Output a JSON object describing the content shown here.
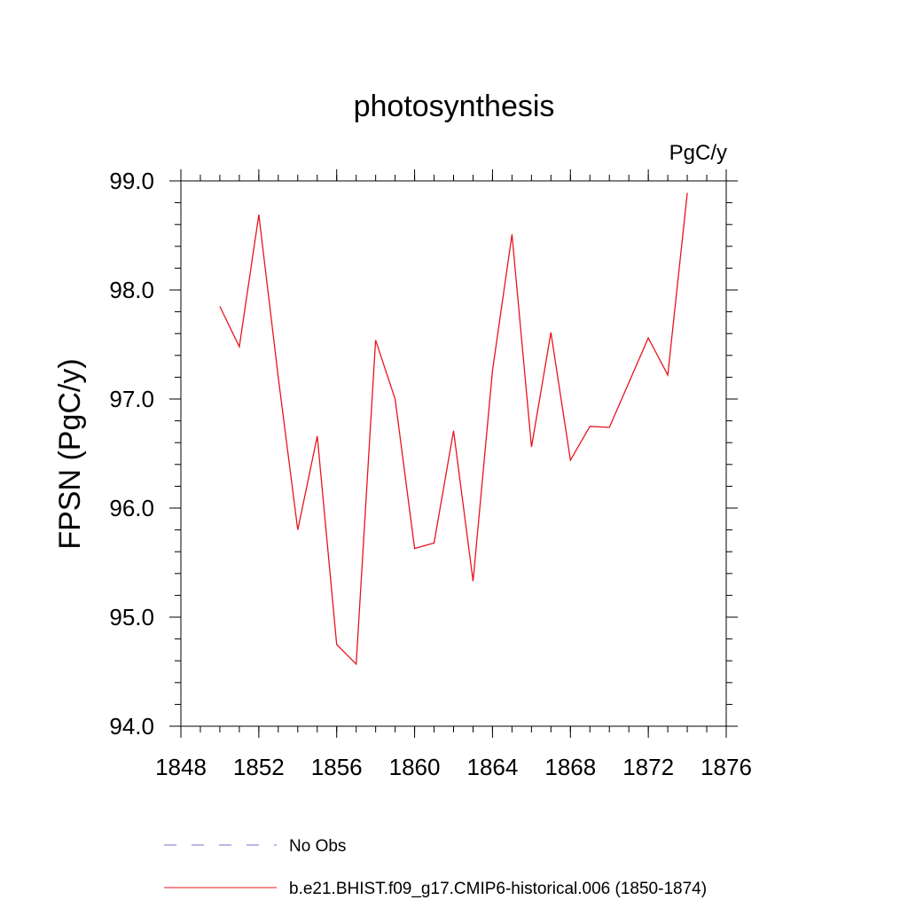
{
  "chart_data": {
    "type": "line",
    "title": "photosynthesis",
    "units_label": "PgC/y",
    "ylabel": "FPSN  (PgC/y)",
    "xlabel": "",
    "xlim": [
      1848,
      1876
    ],
    "ylim": [
      94.0,
      99.0
    ],
    "xticks": [
      "1848",
      "1852",
      "1856",
      "1860",
      "1864",
      "1868",
      "1872",
      "1876"
    ],
    "yticks": [
      "94.0",
      "95.0",
      "96.0",
      "97.0",
      "98.0",
      "99.0"
    ],
    "grid": false,
    "legend_position": "bottom",
    "series": [
      {
        "name": "No Obs",
        "color": "#7b68c8",
        "style": "dashed",
        "x": [],
        "y": []
      },
      {
        "name": "b.e21.BHIST.f09_g17.CMIP6-historical.006 (1850-1874)",
        "color": "#e8141e",
        "style": "solid",
        "x": [
          1850,
          1851,
          1852,
          1853,
          1854,
          1855,
          1856,
          1857,
          1858,
          1859,
          1860,
          1861,
          1862,
          1863,
          1864,
          1865,
          1866,
          1867,
          1868,
          1869,
          1870,
          1871,
          1872,
          1873,
          1874
        ],
        "y": [
          97.85,
          97.48,
          98.69,
          97.2,
          95.8,
          96.66,
          94.75,
          94.57,
          97.54,
          97.0,
          95.63,
          95.68,
          96.71,
          95.33,
          97.26,
          98.51,
          96.56,
          97.61,
          96.44,
          96.75,
          96.74,
          97.15,
          97.56,
          97.22,
          98.89
        ]
      }
    ]
  }
}
